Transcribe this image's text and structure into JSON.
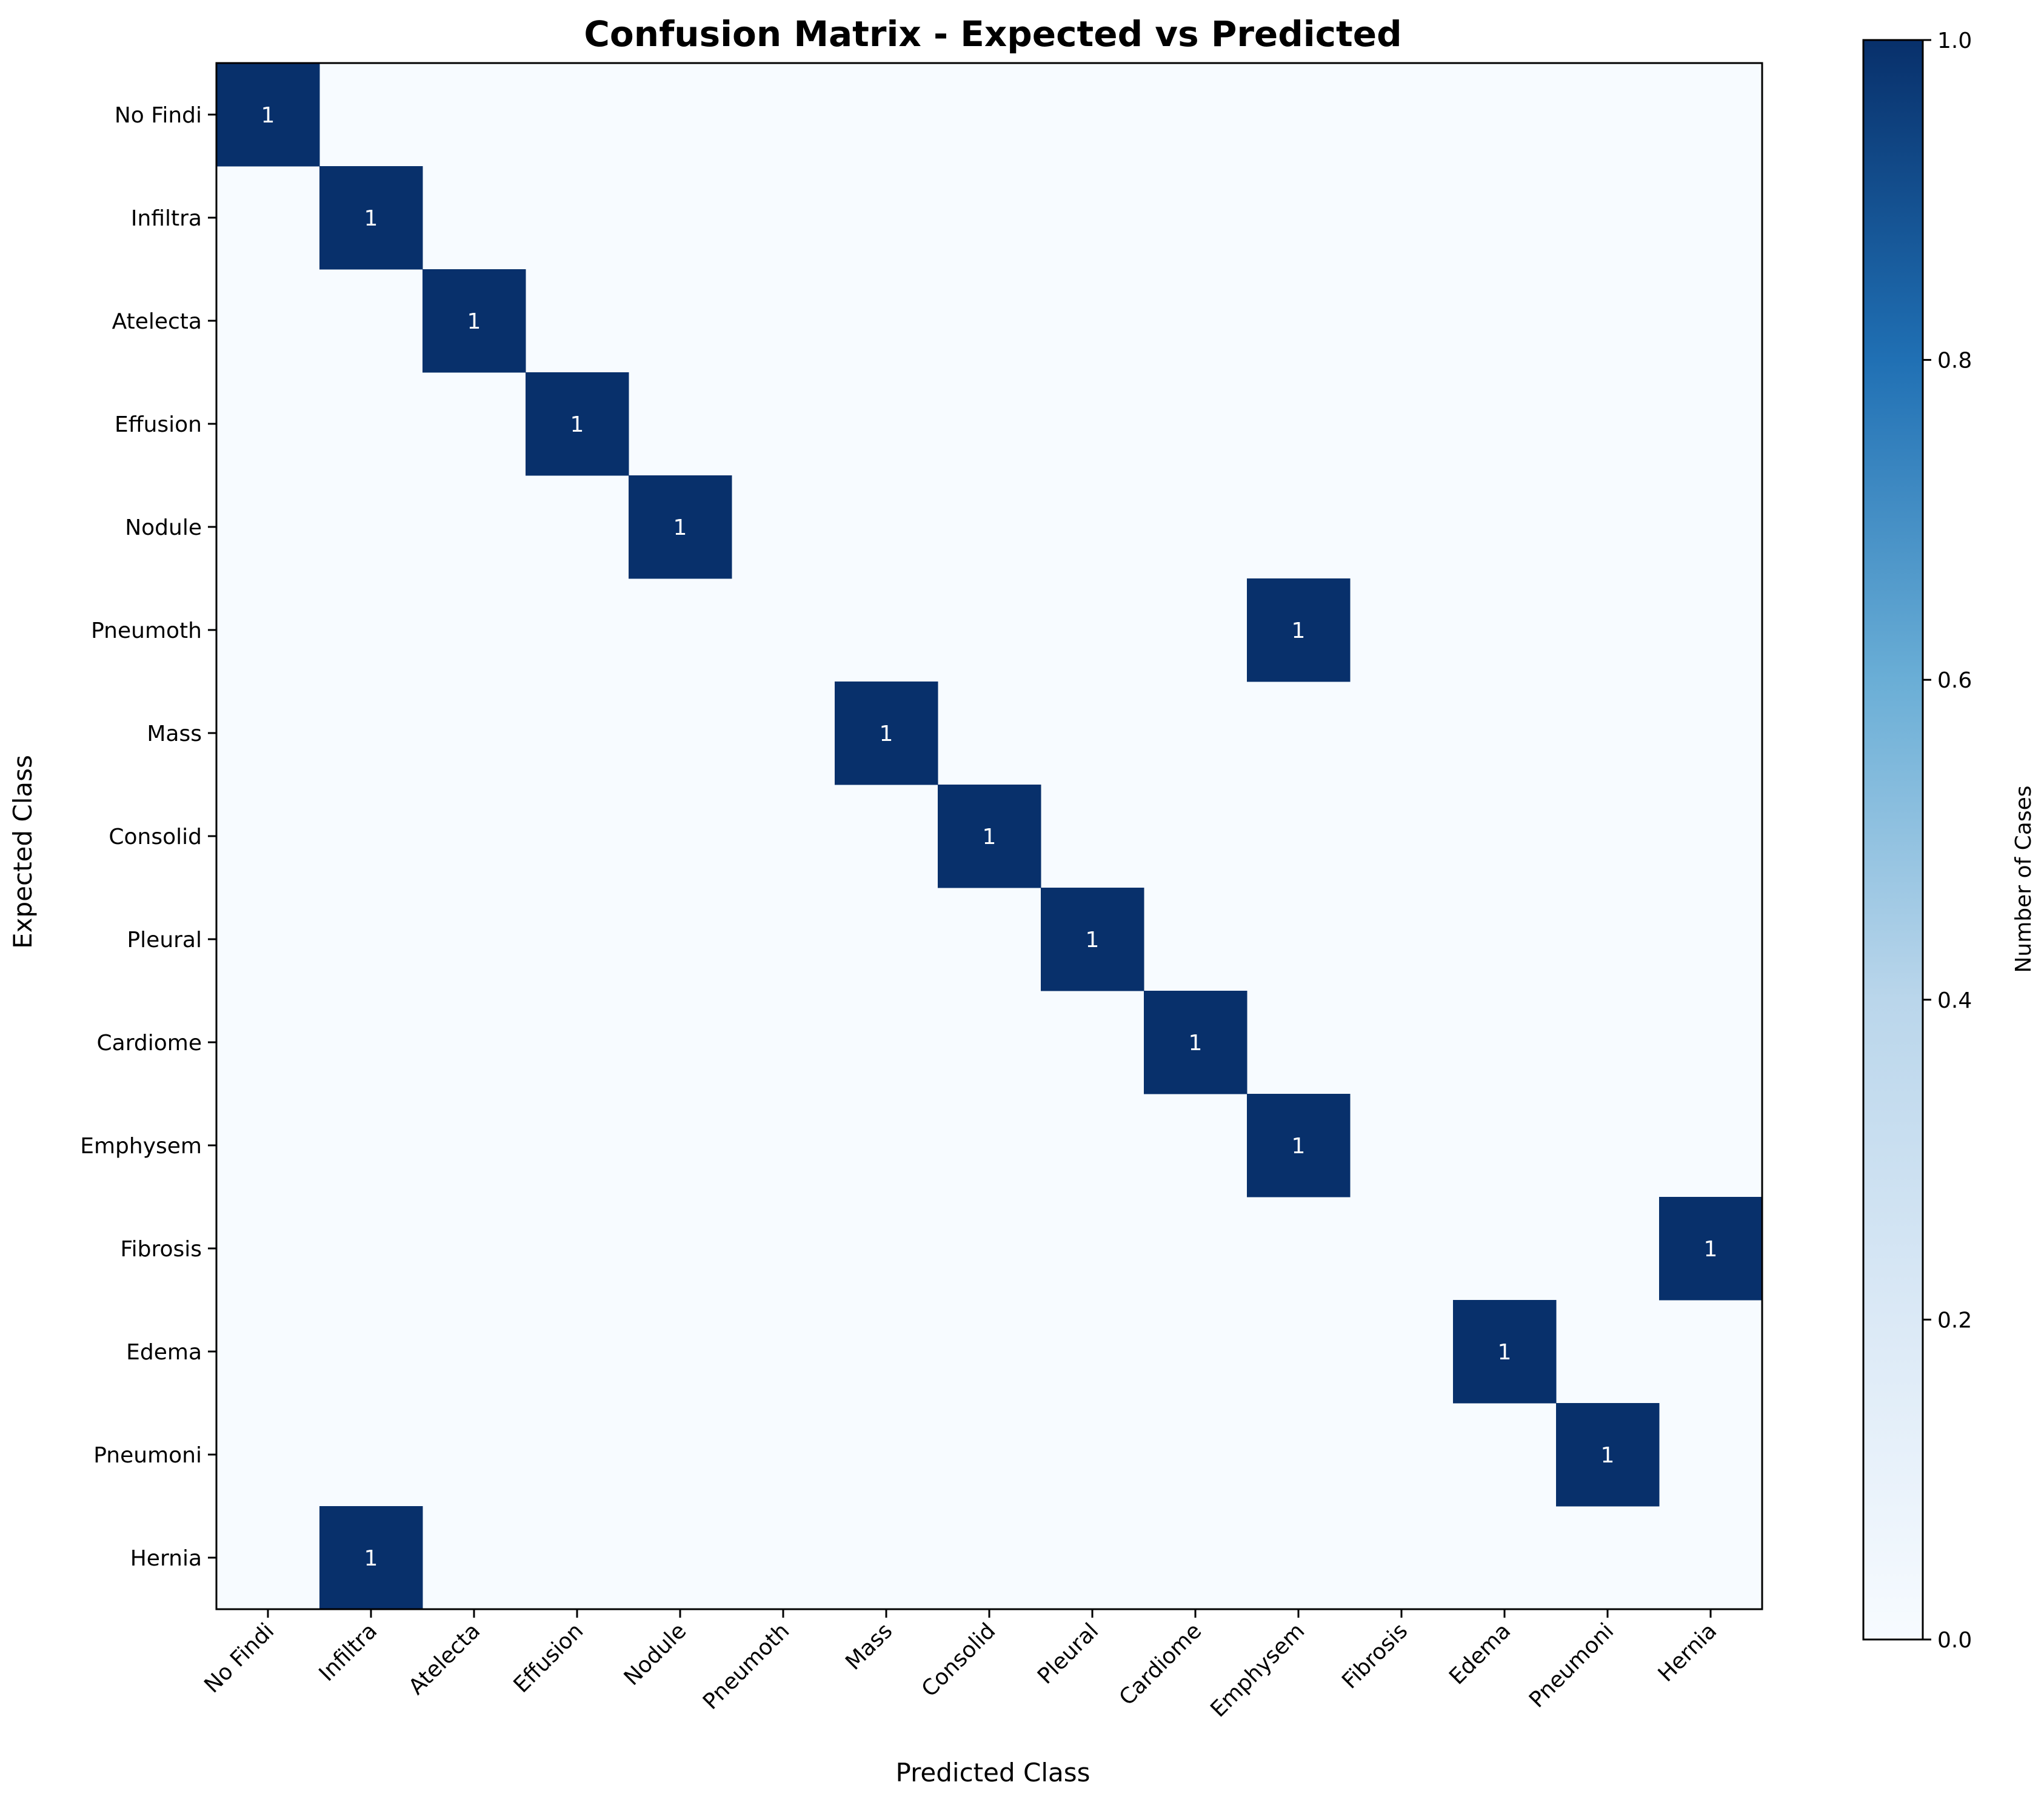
{
  "chart_data": {
    "type": "heatmap",
    "title": "Confusion Matrix - Expected vs Predicted",
    "xlabel": "Predicted Class",
    "ylabel": "Expected Class",
    "x_categories": [
      "No Findi",
      "Infiltra",
      "Atelecta",
      "Effusion",
      "Nodule",
      "Pneumoth",
      "Mass",
      "Consolid",
      "Pleural ",
      "Cardiome",
      "Emphysem",
      "Fibrosis",
      "Edema",
      "Pneumoni",
      "Hernia"
    ],
    "y_categories": [
      "No Findi",
      "Infiltra",
      "Atelecta",
      "Effusion",
      "Nodule",
      "Pneumoth",
      "Mass",
      "Consolid",
      "Pleural ",
      "Cardiome",
      "Emphysem",
      "Fibrosis",
      "Edema",
      "Pneumoni",
      "Hernia"
    ],
    "matrix": [
      [
        1,
        0,
        0,
        0,
        0,
        0,
        0,
        0,
        0,
        0,
        0,
        0,
        0,
        0,
        0
      ],
      [
        0,
        1,
        0,
        0,
        0,
        0,
        0,
        0,
        0,
        0,
        0,
        0,
        0,
        0,
        0
      ],
      [
        0,
        0,
        1,
        0,
        0,
        0,
        0,
        0,
        0,
        0,
        0,
        0,
        0,
        0,
        0
      ],
      [
        0,
        0,
        0,
        1,
        0,
        0,
        0,
        0,
        0,
        0,
        0,
        0,
        0,
        0,
        0
      ],
      [
        0,
        0,
        0,
        0,
        1,
        0,
        0,
        0,
        0,
        0,
        0,
        0,
        0,
        0,
        0
      ],
      [
        0,
        0,
        0,
        0,
        0,
        0,
        0,
        0,
        0,
        0,
        1,
        0,
        0,
        0,
        0
      ],
      [
        0,
        0,
        0,
        0,
        0,
        0,
        1,
        0,
        0,
        0,
        0,
        0,
        0,
        0,
        0
      ],
      [
        0,
        0,
        0,
        0,
        0,
        0,
        0,
        1,
        0,
        0,
        0,
        0,
        0,
        0,
        0
      ],
      [
        0,
        0,
        0,
        0,
        0,
        0,
        0,
        0,
        1,
        0,
        0,
        0,
        0,
        0,
        0
      ],
      [
        0,
        0,
        0,
        0,
        0,
        0,
        0,
        0,
        0,
        1,
        0,
        0,
        0,
        0,
        0
      ],
      [
        0,
        0,
        0,
        0,
        0,
        0,
        0,
        0,
        0,
        0,
        1,
        0,
        0,
        0,
        0
      ],
      [
        0,
        0,
        0,
        0,
        0,
        0,
        0,
        0,
        0,
        0,
        0,
        0,
        0,
        0,
        1
      ],
      [
        0,
        0,
        0,
        0,
        0,
        0,
        0,
        0,
        0,
        0,
        0,
        0,
        1,
        0,
        0
      ],
      [
        0,
        0,
        0,
        0,
        0,
        0,
        0,
        0,
        0,
        0,
        0,
        0,
        0,
        1,
        0
      ],
      [
        0,
        1,
        0,
        0,
        0,
        0,
        0,
        0,
        0,
        0,
        0,
        0,
        0,
        0,
        0
      ]
    ],
    "colorbar": {
      "label": "Number of Cases",
      "range": [
        0.0,
        1.0
      ],
      "ticks": [
        "0.0",
        "0.2",
        "0.4",
        "0.6",
        "0.8",
        "1.0"
      ],
      "cmap": "Blues",
      "low_color": "#f7fbff",
      "high_color": "#08306b"
    },
    "cell_text_color": "#ffffff"
  }
}
